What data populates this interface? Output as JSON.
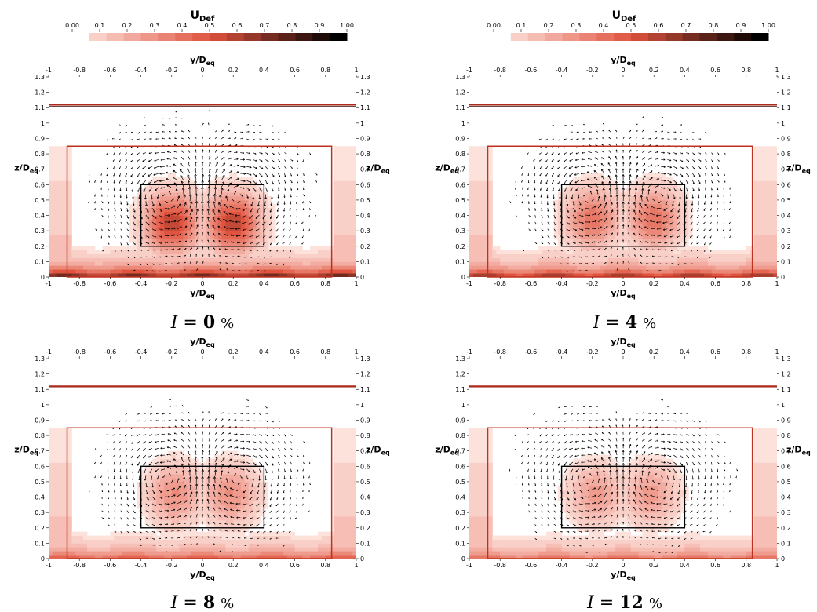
{
  "colorbar": {
    "title": "U",
    "title_sub": "Def",
    "ticks": [
      "0.00",
      "0.1",
      "0.2",
      "0.3",
      "0.4",
      "0.5",
      "0.6",
      "0.7",
      "0.8",
      "0.9",
      "1.00"
    ],
    "levels": 16,
    "colors": {
      "low": "#fde2dc",
      "mid": "#e0533e",
      "high": "#000000"
    }
  },
  "axes": {
    "xlabel": "y/D",
    "xlabel_sub": "eq",
    "ylabel": "z/D",
    "ylabel_sub": "eq",
    "xticks": [
      "-1",
      "-0.8",
      "-0.6",
      "-0.4",
      "-0.2",
      "0",
      "0.2",
      "0.4",
      "0.6",
      "0.8",
      "1"
    ],
    "yticks": [
      "0",
      "0.1",
      "0.2",
      "0.3",
      "0.4",
      "0.5",
      "0.6",
      "0.7",
      "0.8",
      "0.9",
      "1",
      "1.1",
      "1.2",
      "1.3"
    ],
    "xlim": [
      -1,
      1
    ],
    "ylim": [
      0,
      1.3
    ]
  },
  "chart_data": [
    {
      "type": "heatmap",
      "caption": "I = 0 %",
      "caption_italic": "I",
      "caption_value": "0",
      "caption_unit": "%",
      "field": "U_Def",
      "wake_peaks": [
        {
          "y": -0.2,
          "z": 0.35,
          "u": 0.62
        },
        {
          "y": 0.2,
          "z": 0.35,
          "u": 0.62
        }
      ],
      "floor_deficit_max": 0.95,
      "vectors": true
    },
    {
      "type": "heatmap",
      "caption": "I = 4 %",
      "caption_italic": "I",
      "caption_value": "4",
      "caption_unit": "%",
      "field": "U_Def",
      "wake_peaks": [
        {
          "y": -0.2,
          "z": 0.38,
          "u": 0.42
        },
        {
          "y": 0.2,
          "z": 0.38,
          "u": 0.42
        }
      ],
      "floor_deficit_max": 0.8,
      "vectors": true
    },
    {
      "type": "heatmap",
      "caption": "I = 8 %",
      "caption_italic": "I",
      "caption_value": "8",
      "caption_unit": "%",
      "field": "U_Def",
      "wake_peaks": [
        {
          "y": -0.18,
          "z": 0.42,
          "u": 0.32
        },
        {
          "y": 0.18,
          "z": 0.42,
          "u": 0.32
        }
      ],
      "floor_deficit_max": 0.6,
      "vectors": true
    },
    {
      "type": "heatmap",
      "caption": "I = 12 %",
      "caption_italic": "I",
      "caption_value": "12",
      "caption_unit": "%",
      "field": "U_Def",
      "wake_peaks": [
        {
          "y": -0.18,
          "z": 0.42,
          "u": 0.28
        },
        {
          "y": 0.18,
          "z": 0.42,
          "u": 0.28
        }
      ],
      "floor_deficit_max": 0.5,
      "vectors": true
    }
  ],
  "overlays": {
    "water_surface_z": 1.12,
    "red_box": {
      "y": [
        -0.88,
        0.84
      ],
      "z": [
        0,
        0.85
      ]
    },
    "black_box": {
      "y": [
        -0.4,
        0.4
      ],
      "z": [
        0.2,
        0.6
      ]
    }
  }
}
